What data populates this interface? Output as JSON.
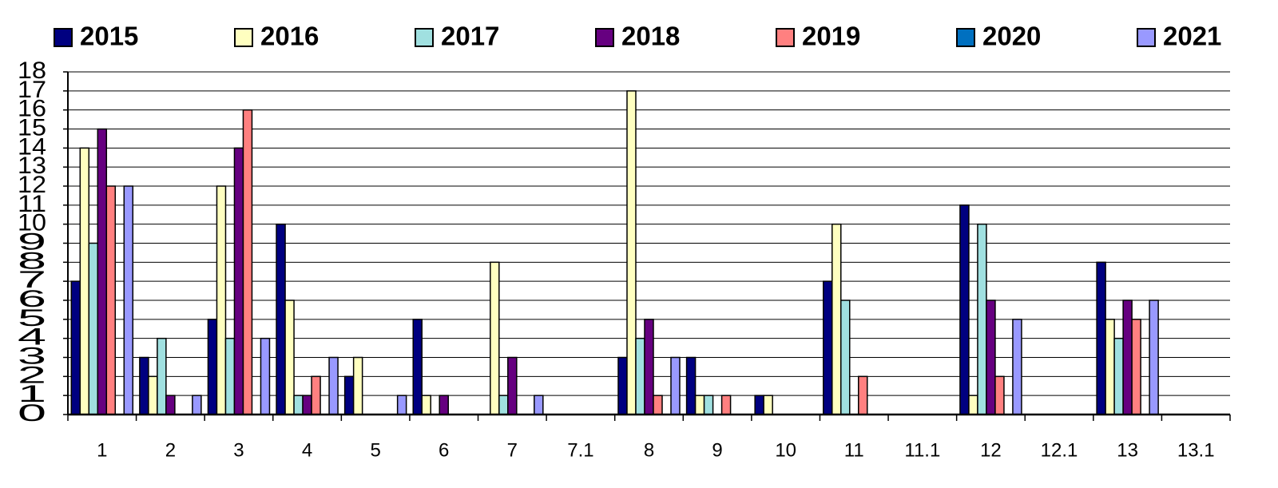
{
  "chart_data": {
    "type": "bar",
    "categories": [
      "1",
      "2",
      "3",
      "4",
      "5",
      "6",
      "7",
      "7.1",
      "8",
      "9",
      "10",
      "11",
      "11.1",
      "12",
      "12.1",
      "13",
      "13.1"
    ],
    "series": [
      {
        "name": "2015",
        "color": "#000080",
        "values": [
          7,
          3,
          5,
          10,
          2,
          5,
          0,
          0,
          3,
          3,
          1,
          7,
          0,
          11,
          0,
          8,
          0
        ]
      },
      {
        "name": "2016",
        "color": "#ffffc0",
        "values": [
          14,
          2,
          12,
          6,
          3,
          1,
          8,
          0,
          17,
          1,
          1,
          10,
          0,
          1,
          0,
          5,
          0
        ]
      },
      {
        "name": "2017",
        "color": "#a0e0e0",
        "values": [
          9,
          4,
          4,
          1,
          0,
          0,
          1,
          0,
          4,
          1,
          0,
          6,
          0,
          10,
          0,
          4,
          0
        ]
      },
      {
        "name": "2018",
        "color": "#660080",
        "values": [
          15,
          1,
          14,
          1,
          0,
          1,
          3,
          0,
          5,
          0,
          0,
          0,
          0,
          6,
          0,
          6,
          0
        ]
      },
      {
        "name": "2019",
        "color": "#ff8080",
        "values": [
          12,
          0,
          16,
          2,
          0,
          0,
          0,
          0,
          1,
          1,
          0,
          2,
          0,
          2,
          0,
          5,
          0
        ]
      },
      {
        "name": "2020",
        "color": "#0070c0",
        "values": [
          0,
          0,
          0,
          0,
          0,
          0,
          0,
          0,
          0,
          0,
          0,
          0,
          0,
          0,
          0,
          0,
          0
        ]
      },
      {
        "name": "2021",
        "color": "#9999ff",
        "values": [
          12,
          1,
          4,
          3,
          1,
          0,
          1,
          0,
          3,
          0,
          0,
          0,
          0,
          5,
          0,
          6,
          0
        ]
      }
    ],
    "ylim": [
      0,
      18
    ],
    "yticks": [
      0,
      1,
      2,
      3,
      4,
      5,
      6,
      7,
      8,
      9,
      10,
      11,
      12,
      13,
      14,
      15,
      16,
      17,
      18
    ],
    "grid": true,
    "legend": "top"
  }
}
